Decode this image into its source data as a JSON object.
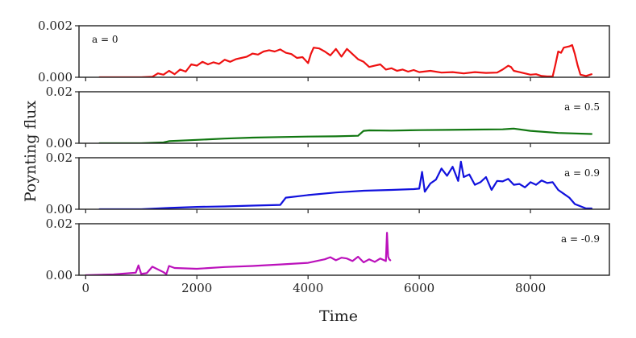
{
  "chart_data": {
    "type": "line",
    "xlabel": "Time",
    "ylabel": "Poynting flux",
    "xlim": [
      -120,
      9420
    ],
    "xticks": [
      0,
      2000,
      4000,
      6000,
      8000
    ],
    "xtick_labels": [
      "0",
      "2000",
      "4000",
      "6000",
      "8000"
    ],
    "panels": [
      {
        "label": "a = 0",
        "label_position": "top-left",
        "color": "#ee1111",
        "ylim": [
          0,
          0.002
        ],
        "yticks": [
          0,
          0.002
        ],
        "ytick_labels": [
          "0.000",
          "0.002"
        ],
        "x": [
          250,
          1000,
          1200,
          1300,
          1400,
          1500,
          1600,
          1700,
          1800,
          1900,
          2000,
          2100,
          2200,
          2300,
          2400,
          2500,
          2600,
          2700,
          2800,
          2900,
          3000,
          3100,
          3200,
          3300,
          3400,
          3500,
          3600,
          3700,
          3800,
          3900,
          4000,
          4050,
          4100,
          4200,
          4300,
          4400,
          4500,
          4600,
          4700,
          4800,
          4900,
          5000,
          5100,
          5200,
          5300,
          5400,
          5500,
          5600,
          5700,
          5800,
          5900,
          6000,
          6200,
          6400,
          6600,
          6800,
          7000,
          7200,
          7400,
          7500,
          7600,
          7650,
          7700,
          7800,
          7900,
          8000,
          8100,
          8200,
          8300,
          8400,
          8450,
          8500,
          8550,
          8600,
          8700,
          8750,
          8800,
          8850,
          8900,
          9000,
          9100
        ],
        "y": [
          0.0,
          0.0,
          2e-05,
          0.00015,
          0.0001,
          0.00025,
          0.00012,
          0.0003,
          0.00022,
          0.0005,
          0.00045,
          0.0006,
          0.0005,
          0.00058,
          0.00052,
          0.00068,
          0.0006,
          0.0007,
          0.00075,
          0.0008,
          0.00092,
          0.00088,
          0.001,
          0.00105,
          0.001,
          0.00108,
          0.00095,
          0.0009,
          0.00075,
          0.00078,
          0.00055,
          0.0009,
          0.00115,
          0.00112,
          0.001,
          0.00085,
          0.0011,
          0.0008,
          0.0011,
          0.0009,
          0.0007,
          0.0006,
          0.0004,
          0.00045,
          0.0005,
          0.0003,
          0.00035,
          0.00025,
          0.0003,
          0.00022,
          0.00028,
          0.0002,
          0.00025,
          0.00018,
          0.0002,
          0.00015,
          0.0002,
          0.00017,
          0.00018,
          0.0003,
          0.00045,
          0.0004,
          0.00025,
          0.0002,
          0.00015,
          0.0001,
          0.00012,
          5e-05,
          3e-05,
          3e-05,
          0.0005,
          0.001,
          0.00095,
          0.00115,
          0.0012,
          0.00125,
          0.0009,
          0.00045,
          0.0001,
          5e-05,
          0.00012
        ]
      },
      {
        "label": "a = 0.5",
        "label_position": "top-right",
        "color": "#117711",
        "ylim": [
          0,
          0.02
        ],
        "yticks": [
          0,
          0.02
        ],
        "ytick_labels": [
          "0.00",
          "0.02"
        ],
        "x": [
          250,
          1000,
          1400,
          1500,
          2000,
          2500,
          3000,
          3500,
          4000,
          4500,
          4900,
          5000,
          5100,
          5500,
          6000,
          6500,
          7000,
          7500,
          7700,
          8000,
          8500,
          9100
        ],
        "y": [
          0.0,
          0.0,
          0.0003,
          0.0008,
          0.0013,
          0.0018,
          0.0022,
          0.0024,
          0.0026,
          0.0027,
          0.0029,
          0.0048,
          0.005,
          0.0049,
          0.0051,
          0.0052,
          0.0053,
          0.0054,
          0.0057,
          0.0048,
          0.004,
          0.0036
        ]
      },
      {
        "label": "a = 0.9",
        "label_position": "top-right",
        "color": "#1111dd",
        "ylim": [
          0,
          0.02
        ],
        "yticks": [
          0,
          0.02
        ],
        "ytick_labels": [
          "0.00",
          "0.02"
        ],
        "x": [
          250,
          1000,
          1500,
          2000,
          2500,
          3000,
          3500,
          3600,
          4000,
          4500,
          5000,
          5500,
          5900,
          6000,
          6050,
          6100,
          6200,
          6300,
          6400,
          6500,
          6600,
          6700,
          6750,
          6800,
          6900,
          7000,
          7100,
          7200,
          7300,
          7400,
          7500,
          7600,
          7700,
          7800,
          7900,
          8000,
          8100,
          8200,
          8300,
          8400,
          8500,
          8600,
          8700,
          8800,
          9000,
          9100
        ],
        "y": [
          0.0,
          0.0,
          0.0005,
          0.0009,
          0.0011,
          0.0014,
          0.0017,
          0.0045,
          0.0055,
          0.0065,
          0.0072,
          0.0075,
          0.0078,
          0.008,
          0.0145,
          0.0068,
          0.01,
          0.0115,
          0.0158,
          0.013,
          0.0165,
          0.011,
          0.0185,
          0.0125,
          0.0135,
          0.0095,
          0.0105,
          0.0125,
          0.0075,
          0.011,
          0.0108,
          0.0118,
          0.0095,
          0.0098,
          0.0085,
          0.0105,
          0.0095,
          0.0112,
          0.0102,
          0.0105,
          0.0075,
          0.006,
          0.0045,
          0.002,
          0.0003,
          0.0003
        ]
      },
      {
        "label": "a = -0.9",
        "label_position": "top-right",
        "color": "#bb11bb",
        "ylim": [
          0,
          0.02
        ],
        "yticks": [
          0,
          0.02
        ],
        "ytick_labels": [
          "0.00",
          "0.02"
        ],
        "x": [
          0,
          500,
          800,
          900,
          950,
          1000,
          1100,
          1200,
          1400,
          1450,
          1500,
          1600,
          2000,
          2500,
          3000,
          3500,
          4000,
          4300,
          4400,
          4500,
          4600,
          4700,
          4800,
          4900,
          5000,
          5100,
          5200,
          5300,
          5400,
          5420,
          5440,
          5460,
          5480
        ],
        "y": [
          0.0,
          0.0003,
          0.0008,
          0.001,
          0.0038,
          0.0005,
          0.0008,
          0.0033,
          0.0012,
          0.0004,
          0.0036,
          0.0028,
          0.0025,
          0.0032,
          0.0036,
          0.0042,
          0.0048,
          0.0062,
          0.007,
          0.0058,
          0.0068,
          0.0065,
          0.0055,
          0.0072,
          0.005,
          0.0062,
          0.0052,
          0.0065,
          0.0055,
          0.0165,
          0.0072,
          0.0062,
          0.0058
        ]
      }
    ]
  }
}
